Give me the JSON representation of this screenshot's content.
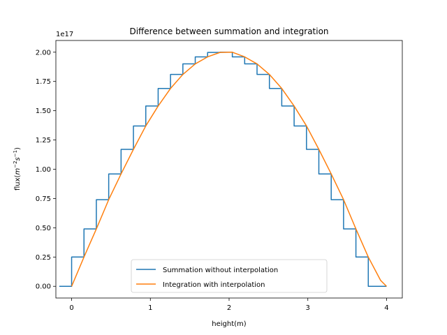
{
  "chart_data": {
    "type": "line",
    "title": "Difference between summation and integration",
    "xlabel": "height(m)",
    "ylabel_prefix": "flux(",
    "ylabel_math_base": "m",
    "ylabel_exp1": "−2",
    "ylabel_math_s": "s",
    "ylabel_exp2": "−1",
    "ylabel_suffix": ")",
    "y_offset_label": "1e17",
    "xlim": [
      -0.2,
      4.2
    ],
    "ylim": [
      -0.1,
      2.1
    ],
    "x_ticks": [
      0,
      1,
      2,
      3,
      4
    ],
    "x_tick_labels": [
      "0",
      "1",
      "2",
      "3",
      "4"
    ],
    "y_ticks": [
      0.0,
      0.25,
      0.5,
      0.75,
      1.0,
      1.25,
      1.5,
      1.75,
      2.0
    ],
    "y_tick_labels": [
      "0.00",
      "0.25",
      "0.50",
      "0.75",
      "1.00",
      "1.25",
      "1.50",
      "1.75",
      "2.00"
    ],
    "legend_position": "lower center",
    "series": [
      {
        "name": "Summation without interpolation",
        "color": "#1f77b4",
        "style": "step-post",
        "x": [
          -0.157,
          0.0,
          0.157,
          0.314,
          0.471,
          0.628,
          0.785,
          0.942,
          1.099,
          1.256,
          1.413,
          1.57,
          1.727,
          1.884,
          2.041,
          2.198,
          2.355,
          2.512,
          2.669,
          2.826,
          2.983,
          3.14,
          3.297,
          3.454,
          3.611,
          3.768,
          3.925,
          4.0
        ],
        "y": [
          0.0,
          0.25,
          0.49,
          0.74,
          0.96,
          1.17,
          1.37,
          1.54,
          1.69,
          1.81,
          1.9,
          1.96,
          1.998,
          2.0,
          1.96,
          1.9,
          1.81,
          1.69,
          1.54,
          1.37,
          1.17,
          0.96,
          0.74,
          0.49,
          0.25,
          0.0,
          0.0,
          0.0
        ]
      },
      {
        "name": "Integration with interpolation",
        "color": "#ff7f0e",
        "style": "line",
        "x": [
          0.0,
          0.157,
          0.314,
          0.471,
          0.628,
          0.785,
          0.942,
          1.099,
          1.256,
          1.413,
          1.57,
          1.727,
          1.884,
          2.041,
          2.198,
          2.355,
          2.512,
          2.669,
          2.826,
          2.983,
          3.14,
          3.297,
          3.454,
          3.611,
          3.768,
          3.925,
          4.0
        ],
        "y": [
          0.0,
          0.25,
          0.49,
          0.74,
          0.96,
          1.17,
          1.37,
          1.54,
          1.69,
          1.81,
          1.9,
          1.96,
          1.998,
          2.0,
          1.96,
          1.9,
          1.81,
          1.69,
          1.54,
          1.37,
          1.17,
          0.96,
          0.74,
          0.49,
          0.25,
          0.05,
          0.0
        ]
      }
    ]
  }
}
